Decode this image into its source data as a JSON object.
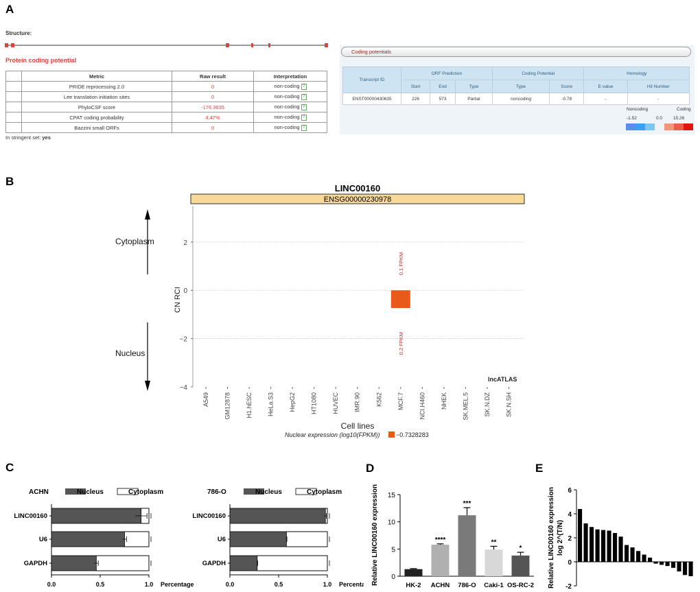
{
  "panel_labels": {
    "a": "A",
    "b": "B",
    "c": "C",
    "d": "D",
    "e": "E"
  },
  "panelA": {
    "structure_label": "Structure:",
    "protein_title": "Protein coding potential",
    "table": {
      "headers": [
        "Metric",
        "Raw result",
        "Interpretation"
      ],
      "rows": [
        {
          "metric": "PRIDE reprocessing 2.0",
          "raw": "0",
          "interp": "non-coding"
        },
        {
          "metric": "Lee translation initiation sites",
          "raw": "0",
          "interp": "non-coding"
        },
        {
          "metric": "PhyloCSF score",
          "raw": "-176.3835",
          "interp": "non-coding"
        },
        {
          "metric": "CPAT coding probability",
          "raw": "4.47%",
          "interp": "non-coding"
        },
        {
          "metric": "Bazzini small ORFs",
          "raw": "0",
          "interp": "non-coding"
        }
      ],
      "help_glyph": "?"
    },
    "stringent_label": "In stringent set:",
    "stringent_value": "yes",
    "coding_potentials": {
      "title": "Coding potentials",
      "group_headers": [
        "Transcript ID",
        "ORF Prediction",
        "Coding Potential",
        "Homology"
      ],
      "sub_headers": [
        "Start",
        "End",
        "Type",
        "Type",
        "Score",
        "E-value",
        "Hit Number"
      ],
      "row": [
        "ENST00000430635",
        "226",
        "573",
        "Partial",
        "noncoding",
        "-0.78",
        "-",
        "-"
      ],
      "legend": {
        "noncoding_label": "Noncoding",
        "coding_label": "Coding",
        "min": "-1.52",
        "mid": "0.0",
        "max": "15.26",
        "blue_colors": [
          "#5b8def",
          "#3aa0f0",
          "#7cc6f5"
        ],
        "red_colors": [
          "#f2957a",
          "#ec5a4e",
          "#e01414"
        ]
      }
    }
  },
  "panelB": {
    "chart_data": {
      "type": "bar",
      "title": "LINC00160",
      "subtitle": "ENSG00000230978",
      "xlabel": "Cell lines",
      "ylabel": "CN RCI",
      "ylim": [
        -4,
        3.5
      ],
      "yticks": [
        2,
        0,
        -2,
        -4
      ],
      "categories": [
        "A549",
        "GM12878",
        "H1.hESC",
        "HeLa.S3",
        "HepG2",
        "HT1080",
        "HUVEC",
        "IMR.90",
        "K562",
        "MCF.7",
        "NCI.H460",
        "NHEK",
        "SK.MEL.5",
        "SK.N.DZ",
        "SK.N.SH"
      ],
      "bars": [
        {
          "category": "MCF.7",
          "value": -0.7328283
        }
      ],
      "annotations": [
        {
          "category": "MCF.7",
          "text": "0.1 FPKM",
          "y": 1.1
        },
        {
          "category": "MCF.7",
          "text": "0.2 FPKM",
          "y": -2.2
        }
      ],
      "watermark": "lncATLAS",
      "legend_label": "Nuclear expression (log10(FPKM))",
      "legend_value": "−0.7328283",
      "bar_color": "#e8591a",
      "header_color": "#f7d99a"
    },
    "cytoplasm_label": "Cytoplasm",
    "nucleus_label": "Nucleus"
  },
  "panelC": {
    "chart_data": [
      {
        "type": "bar",
        "title": "ACHN",
        "orientation": "horizontal",
        "stacked": true,
        "categories": [
          "LINC00160",
          "U6",
          "GAPDH"
        ],
        "series": [
          {
            "name": "Nucleus",
            "values": [
              0.92,
              0.75,
              0.46
            ],
            "color": "#555555"
          },
          {
            "name": "Cytoplasm",
            "values": [
              0.08,
              0.25,
              0.54
            ],
            "color": "#ffffff"
          }
        ],
        "error": [
          0.06,
          0.02,
          0.02
        ],
        "xticks": [
          "0.0",
          "0.5",
          "1.0"
        ],
        "xlabel": "Percentage",
        "xlim": [
          0,
          1.0
        ]
      },
      {
        "type": "bar",
        "title": "786-O",
        "orientation": "horizontal",
        "stacked": true,
        "categories": [
          "LINC00160",
          "U6",
          "GAPDH"
        ],
        "series": [
          {
            "name": "Nucleus",
            "values": [
              0.98,
              0.58,
              0.28
            ],
            "color": "#555555"
          },
          {
            "name": "Cytoplasm",
            "values": [
              0.02,
              0.42,
              0.72
            ],
            "color": "#ffffff"
          }
        ],
        "error": [
          0.01,
          0.005,
          0.005
        ],
        "xticks": [
          "0.0",
          "0.5",
          "1.0"
        ],
        "xlabel": "Percentage",
        "xlim": [
          0,
          1.0
        ]
      }
    ]
  },
  "panelD": {
    "chart_data": {
      "type": "bar",
      "ylabel": "Relative LINC00160 expression",
      "categories": [
        "HK-2",
        "ACHN",
        "786-O",
        "Caki-1",
        "OS-RC-2"
      ],
      "values": [
        1.3,
        5.8,
        11.2,
        4.9,
        3.8
      ],
      "error": [
        0.1,
        0.15,
        1.4,
        0.6,
        0.6
      ],
      "significance": [
        "",
        "****",
        "***",
        "**",
        "*"
      ],
      "colors": [
        "#222222",
        "#b0b0b0",
        "#7a7a7a",
        "#d8d8d8",
        "#555555"
      ],
      "ylim": [
        0,
        15
      ],
      "yticks": [
        "0",
        "5",
        "10",
        "15"
      ]
    }
  },
  "panelE": {
    "chart_data": {
      "type": "bar",
      "ylabel": "Relative LINC00160 expression",
      "ylabel2": "log 2^(T/N)",
      "values": [
        4.4,
        3.2,
        2.9,
        2.7,
        2.65,
        2.6,
        2.4,
        2.1,
        1.4,
        1.2,
        0.9,
        0.6,
        0.35,
        -0.15,
        -0.25,
        -0.35,
        -0.5,
        -0.8,
        -1.1,
        -1.2
      ],
      "ylim": [
        -2,
        6
      ],
      "yticks": [
        "6",
        "4",
        "2",
        "0",
        "-2"
      ]
    }
  }
}
